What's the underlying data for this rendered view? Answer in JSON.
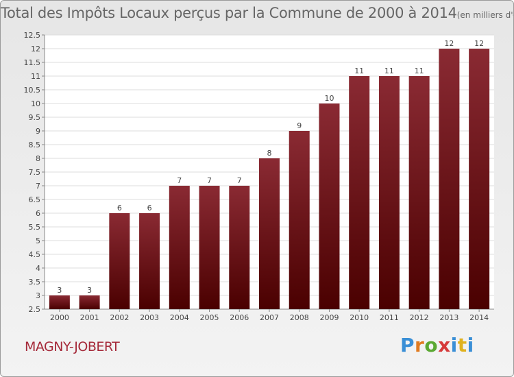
{
  "header": {
    "title": "Total des Impôts Locaux perçus par la Commune de 2000 à 2014",
    "unit": "(en milliers d'€)"
  },
  "footer": {
    "commune": "MAGNY-JOBERT",
    "logo": [
      "P",
      "r",
      "o",
      "x",
      "i",
      "t",
      "i"
    ]
  },
  "colors": {
    "bar_top": "#8a2a33",
    "bar_bottom": "#4a0000"
  },
  "chart_data": {
    "type": "bar",
    "title": "Total des Impôts Locaux perçus par la Commune de 2000 à 2014",
    "xlabel": "",
    "ylabel": "",
    "ylim": [
      2.5,
      12.5
    ],
    "yticks": [
      "2.5",
      "3",
      "3.5",
      "4",
      "4.5",
      "5",
      "5.5",
      "6",
      "6.5",
      "7",
      "7.5",
      "8",
      "8.5",
      "9",
      "9.5",
      "10",
      "10.5",
      "11",
      "11.5",
      "12",
      "12.5"
    ],
    "categories": [
      "2000",
      "2001",
      "2002",
      "2003",
      "2004",
      "2005",
      "2006",
      "2007",
      "2008",
      "2009",
      "2010",
      "2011",
      "2012",
      "2013",
      "2014"
    ],
    "values": [
      3,
      3,
      6,
      6,
      7,
      7,
      7,
      8,
      9,
      10,
      11,
      11,
      11,
      12,
      12
    ],
    "grid": true
  }
}
